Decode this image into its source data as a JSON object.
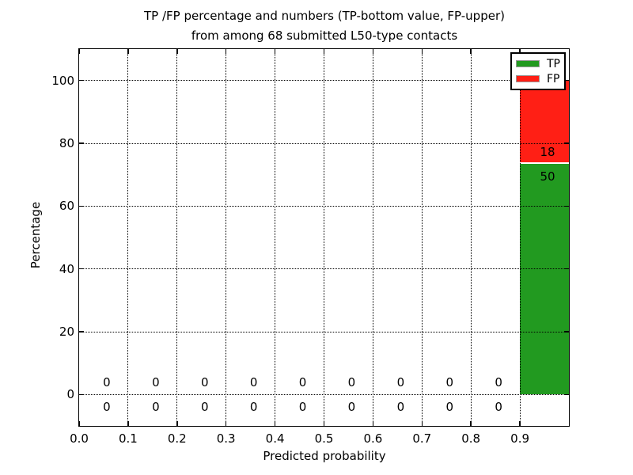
{
  "figure": {
    "title_line1": "TP /FP percentage and numbers (TP-bottom value, FP-upper)",
    "title_line2": "from among 68 submitted L50-type contacts",
    "xlabel": "Predicted probability",
    "ylabel": "Percentage"
  },
  "legend": {
    "items": [
      {
        "label": "TP",
        "color": "#229a20"
      },
      {
        "label": "FP",
        "color": "#ff1f15"
      }
    ]
  },
  "chart_data": {
    "type": "bar",
    "stacked": true,
    "title": "TP /FP percentage and numbers (TP-bottom value, FP-upper) from among 68 submitted L50-type contacts",
    "xlabel": "Predicted probability",
    "ylabel": "Percentage",
    "total_contacts": 68,
    "xlim": [
      0.0,
      1.0
    ],
    "ylim": [
      -10,
      110
    ],
    "grid": "dotted",
    "legend_position": "upper right",
    "bin_width": 0.1,
    "x_ticks": [
      {
        "value": 0.0,
        "label": "0.0"
      },
      {
        "value": 0.1,
        "label": "0.1"
      },
      {
        "value": 0.2,
        "label": "0.2"
      },
      {
        "value": 0.3,
        "label": "0.3"
      },
      {
        "value": 0.4,
        "label": "0.4"
      },
      {
        "value": 0.5,
        "label": "0.5"
      },
      {
        "value": 0.6,
        "label": "0.6"
      },
      {
        "value": 0.7,
        "label": "0.7"
      },
      {
        "value": 0.8,
        "label": "0.8"
      },
      {
        "value": 0.9,
        "label": "0.9"
      }
    ],
    "y_ticks": [
      {
        "value": 0,
        "label": "0"
      },
      {
        "value": 20,
        "label": "20"
      },
      {
        "value": 40,
        "label": "40"
      },
      {
        "value": 60,
        "label": "60"
      },
      {
        "value": 80,
        "label": "80"
      },
      {
        "value": 100,
        "label": "100"
      }
    ],
    "categories": [
      "0.0-0.1",
      "0.1-0.2",
      "0.2-0.3",
      "0.3-0.4",
      "0.4-0.5",
      "0.5-0.6",
      "0.6-0.7",
      "0.7-0.8",
      "0.8-0.9",
      "0.9-1.0"
    ],
    "series": [
      {
        "name": "TP",
        "color": "#229a20",
        "counts": [
          0,
          0,
          0,
          0,
          0,
          0,
          0,
          0,
          0,
          50
        ],
        "percentages": [
          0,
          0,
          0,
          0,
          0,
          0,
          0,
          0,
          0,
          73.5
        ]
      },
      {
        "name": "FP",
        "color": "#ff1f15",
        "counts": [
          0,
          0,
          0,
          0,
          0,
          0,
          0,
          0,
          0,
          18
        ],
        "percentages": [
          0,
          0,
          0,
          0,
          0,
          0,
          0,
          0,
          0,
          26.5
        ]
      }
    ]
  }
}
